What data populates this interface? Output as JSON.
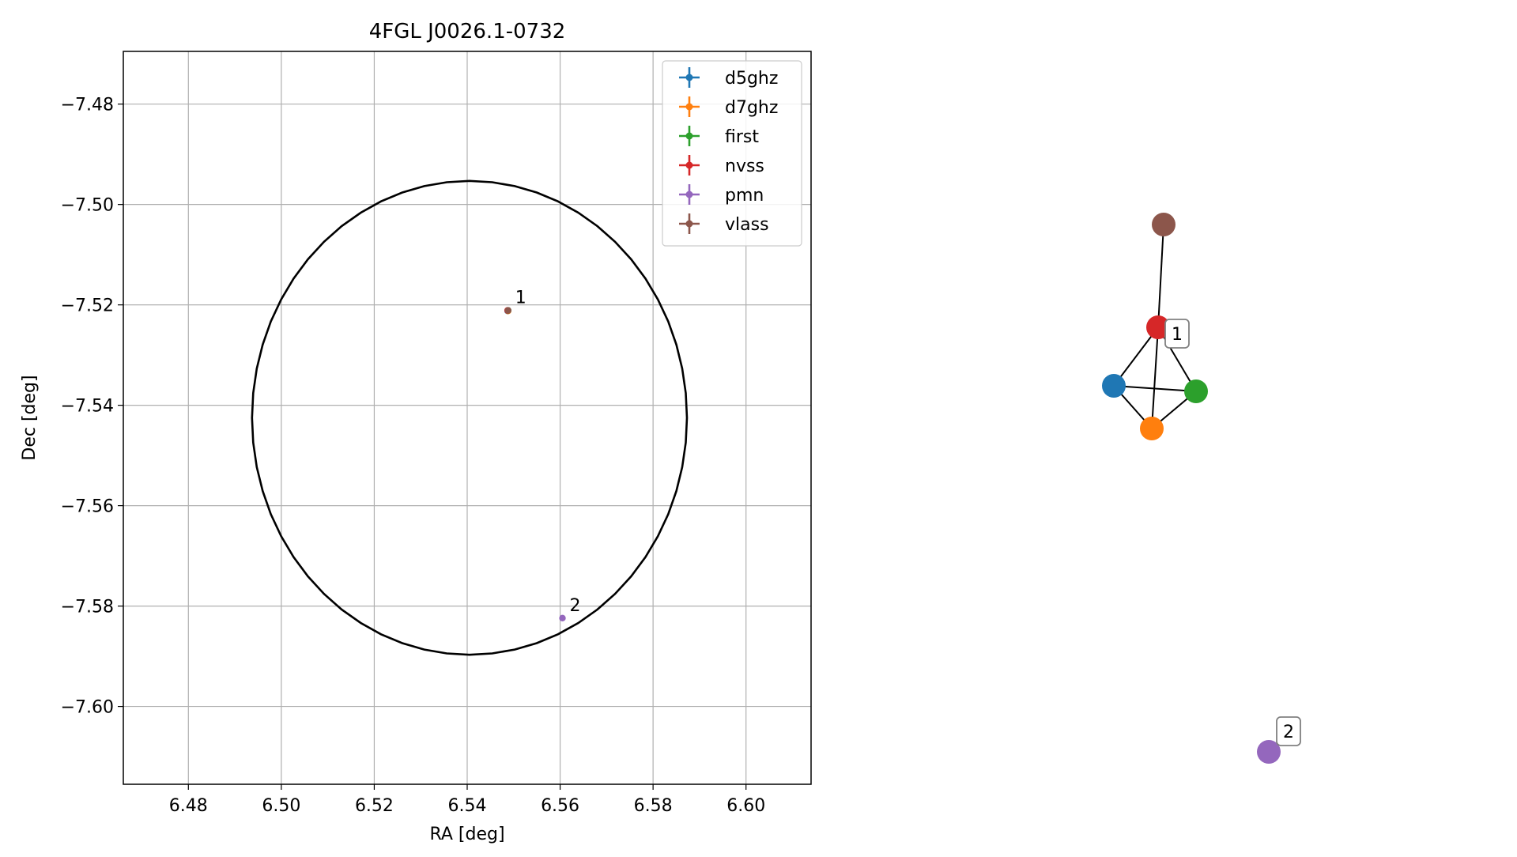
{
  "chart_data": [
    {
      "type": "scatter",
      "title": "4FGL J0026.1-0732",
      "xlabel": "RA [deg]",
      "ylabel": "Dec [deg]",
      "xlim": [
        6.466,
        6.614
      ],
      "ylim": [
        -7.6155,
        -7.4695
      ],
      "xticks": [
        6.48,
        6.5,
        6.52,
        6.54,
        6.56,
        6.58,
        6.6
      ],
      "xtick_labels": [
        "6.48",
        "6.50",
        "6.52",
        "6.54",
        "6.56",
        "6.58",
        "6.60"
      ],
      "yticks": [
        -7.48,
        -7.5,
        -7.52,
        -7.54,
        -7.56,
        -7.58,
        -7.6
      ],
      "ytick_labels": [
        "−7.48",
        "−7.50",
        "−7.52",
        "−7.54",
        "−7.56",
        "−7.58",
        "−7.60"
      ],
      "grid": true,
      "legend_position": "top-right",
      "series": [
        {
          "name": "d5ghz",
          "color": "#1f77b4",
          "points": [
            {
              "ra": 6.5487,
              "dec": -7.5212
            }
          ]
        },
        {
          "name": "d7ghz",
          "color": "#ff7f0e",
          "points": [
            {
              "ra": 6.5488,
              "dec": -7.5212
            }
          ]
        },
        {
          "name": "first",
          "color": "#2ca02c",
          "points": [
            {
              "ra": 6.5488,
              "dec": -7.5211
            }
          ]
        },
        {
          "name": "nvss",
          "color": "#d62728",
          "points": [
            {
              "ra": 6.5487,
              "dec": -7.5211
            }
          ]
        },
        {
          "name": "pmn",
          "color": "#9467bd",
          "points": [
            {
              "ra": 6.5605,
              "dec": -7.5824
            }
          ]
        },
        {
          "name": "vlass",
          "color": "#8c564b",
          "points": [
            {
              "ra": 6.5488,
              "dec": -7.5211
            }
          ]
        }
      ],
      "annotations": [
        {
          "text": "1",
          "ra": 6.5488,
          "dec": -7.5211
        },
        {
          "text": "2",
          "ra": 6.5605,
          "dec": -7.5824
        }
      ],
      "ellipse": {
        "center_ra": 6.5405,
        "center_dec": -7.5425,
        "semi_ra": 0.0468,
        "semi_dec": 0.0472
      }
    },
    {
      "type": "graph",
      "nodes": [
        {
          "id": "vlass",
          "color": "#8c564b"
        },
        {
          "id": "nvss",
          "color": "#d62728",
          "label": "1"
        },
        {
          "id": "d5ghz",
          "color": "#1f77b4"
        },
        {
          "id": "first",
          "color": "#2ca02c"
        },
        {
          "id": "d7ghz",
          "color": "#ff7f0e"
        },
        {
          "id": "pmn",
          "color": "#9467bd",
          "label": "2"
        }
      ],
      "edges": [
        [
          "vlass",
          "nvss"
        ],
        [
          "nvss",
          "d5ghz"
        ],
        [
          "nvss",
          "first"
        ],
        [
          "nvss",
          "d7ghz"
        ],
        [
          "d5ghz",
          "first"
        ],
        [
          "d5ghz",
          "d7ghz"
        ],
        [
          "first",
          "d7ghz"
        ]
      ]
    }
  ]
}
